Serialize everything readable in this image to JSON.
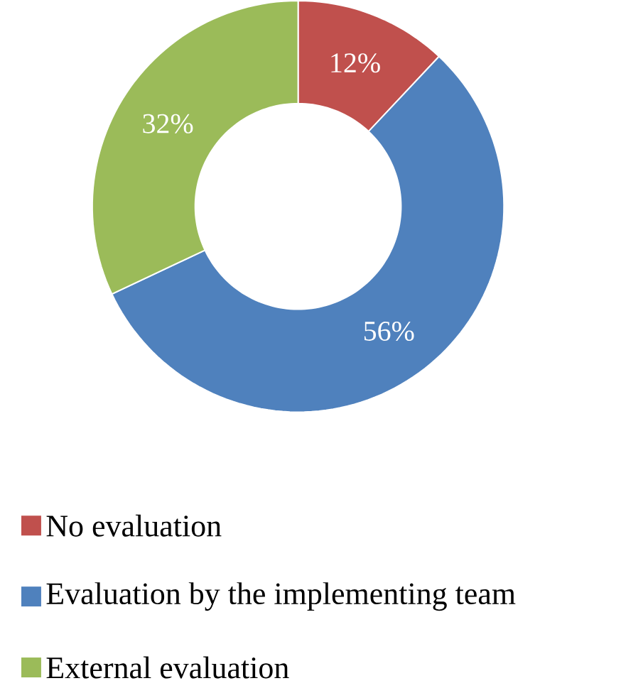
{
  "chart_data": {
    "type": "donut",
    "categories": [
      "No evaluation",
      "Evaluation by the implementing team",
      "External evaluation"
    ],
    "values": [
      12,
      56,
      32
    ],
    "colors": [
      "#c0504d",
      "#4f81bd",
      "#9bbb59"
    ],
    "value_labels": [
      "12%",
      "56%",
      "32%"
    ],
    "legend": "bottom"
  }
}
